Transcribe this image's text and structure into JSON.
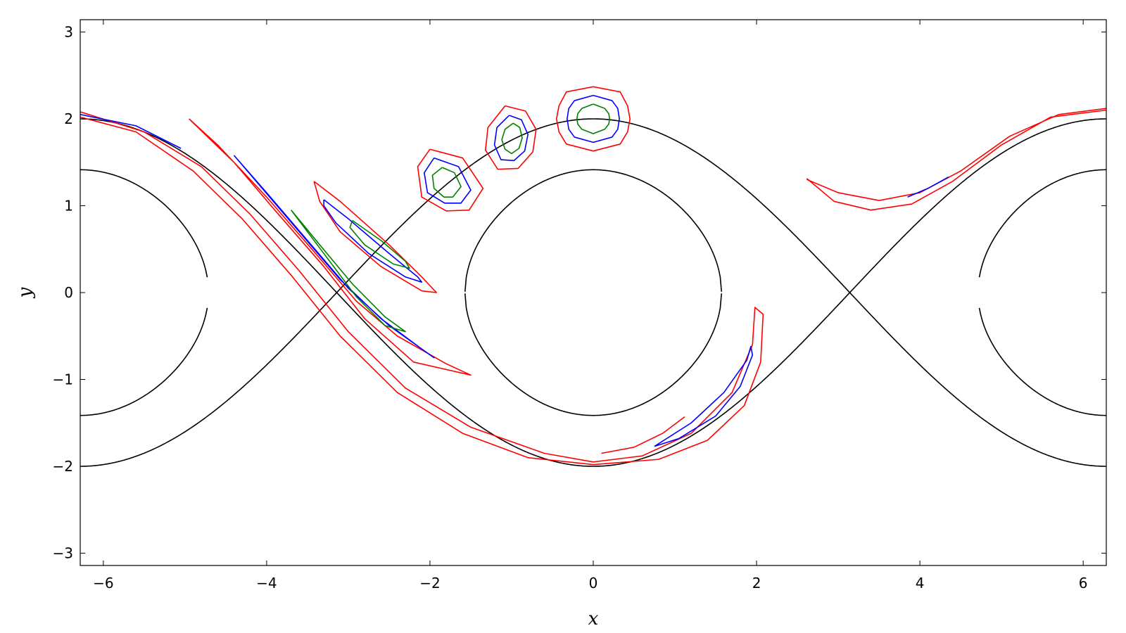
{
  "chart_data": {
    "type": "line",
    "title": "",
    "xlabel": "x",
    "ylabel": "y",
    "xlim": [
      -6.283,
      6.283
    ],
    "ylim": [
      -3.14159,
      3.14159
    ],
    "x_ticks": [
      -6,
      -4,
      -2,
      0,
      2,
      4,
      6
    ],
    "x_tick_labels": [
      "−6",
      "−4",
      "−2",
      "0",
      "2",
      "4",
      "6"
    ],
    "y_ticks": [
      -3,
      -2,
      -1,
      0,
      1,
      2,
      3
    ],
    "y_tick_labels": [
      "−3",
      "−2",
      "−1",
      "0",
      "1",
      "2",
      "3"
    ],
    "grid": false,
    "legend": "none",
    "colors": {
      "separatrix": "#000000",
      "outer": "#ff0000",
      "middle": "#0000ff",
      "inner": "#008000"
    },
    "separatrix_levels": [
      {
        "energy": -1,
        "note": "separatrix y = ±2cos(x/2)"
      },
      {
        "energy": 0,
        "note": "y = ±√(2(1+cos x))"
      },
      {
        "energy": 1,
        "note": "outer curves"
      }
    ],
    "series": [
      {
        "color": "outer",
        "points": [
          [
            0.0,
            2.37
          ],
          [
            0.33,
            2.31
          ],
          [
            0.42,
            2.15
          ],
          [
            0.45,
            2.0
          ],
          [
            0.42,
            1.85
          ],
          [
            0.33,
            1.71
          ],
          [
            0.0,
            1.63
          ],
          [
            -0.33,
            1.71
          ],
          [
            -0.42,
            1.85
          ],
          [
            -0.45,
            2.0
          ],
          [
            -0.42,
            2.15
          ],
          [
            -0.33,
            2.31
          ],
          [
            0.0,
            2.37
          ]
        ]
      },
      {
        "color": "middle",
        "points": [
          [
            0.0,
            2.27
          ],
          [
            0.23,
            2.21
          ],
          [
            0.3,
            2.12
          ],
          [
            0.32,
            2.0
          ],
          [
            0.3,
            1.88
          ],
          [
            0.23,
            1.79
          ],
          [
            0.0,
            1.73
          ],
          [
            -0.23,
            1.79
          ],
          [
            -0.3,
            1.88
          ],
          [
            -0.32,
            2.0
          ],
          [
            -0.3,
            2.12
          ],
          [
            -0.23,
            2.21
          ],
          [
            0.0,
            2.27
          ]
        ]
      },
      {
        "color": "inner",
        "points": [
          [
            0.0,
            2.17
          ],
          [
            0.14,
            2.12
          ],
          [
            0.19,
            2.06
          ],
          [
            0.2,
            2.0
          ],
          [
            0.19,
            1.94
          ],
          [
            0.14,
            1.88
          ],
          [
            0.0,
            1.83
          ],
          [
            -0.14,
            1.88
          ],
          [
            -0.19,
            1.94
          ],
          [
            -0.2,
            2.0
          ],
          [
            -0.19,
            2.06
          ],
          [
            -0.14,
            2.12
          ],
          [
            0.0,
            2.17
          ]
        ]
      },
      {
        "color": "outer",
        "points": [
          [
            -1.08,
            2.15
          ],
          [
            -0.83,
            2.09
          ],
          [
            -0.7,
            1.88
          ],
          [
            -0.74,
            1.62
          ],
          [
            -0.92,
            1.43
          ],
          [
            -1.17,
            1.42
          ],
          [
            -1.32,
            1.64
          ],
          [
            -1.29,
            1.9
          ],
          [
            -1.08,
            2.15
          ]
        ]
      },
      {
        "color": "middle",
        "points": [
          [
            -1.03,
            2.04
          ],
          [
            -0.88,
            1.99
          ],
          [
            -0.8,
            1.82
          ],
          [
            -0.84,
            1.63
          ],
          [
            -0.97,
            1.52
          ],
          [
            -1.13,
            1.53
          ],
          [
            -1.21,
            1.7
          ],
          [
            -1.18,
            1.9
          ],
          [
            -1.03,
            2.04
          ]
        ]
      },
      {
        "color": "inner",
        "points": [
          [
            -0.98,
            1.95
          ],
          [
            -0.9,
            1.9
          ],
          [
            -0.87,
            1.78
          ],
          [
            -0.91,
            1.66
          ],
          [
            -1.0,
            1.6
          ],
          [
            -1.08,
            1.65
          ],
          [
            -1.12,
            1.76
          ],
          [
            -1.08,
            1.88
          ],
          [
            -0.98,
            1.95
          ]
        ]
      },
      {
        "color": "outer",
        "points": [
          [
            -2.0,
            1.65
          ],
          [
            -1.6,
            1.55
          ],
          [
            -1.35,
            1.2
          ],
          [
            -1.52,
            0.95
          ],
          [
            -1.8,
            0.94
          ],
          [
            -2.1,
            1.1
          ],
          [
            -2.15,
            1.45
          ],
          [
            -2.0,
            1.65
          ]
        ]
      },
      {
        "color": "middle",
        "points": [
          [
            -1.95,
            1.55
          ],
          [
            -1.65,
            1.45
          ],
          [
            -1.5,
            1.18
          ],
          [
            -1.62,
            1.03
          ],
          [
            -1.82,
            1.03
          ],
          [
            -2.03,
            1.15
          ],
          [
            -2.07,
            1.38
          ],
          [
            -1.95,
            1.55
          ]
        ]
      },
      {
        "color": "inner",
        "points": [
          [
            -1.85,
            1.44
          ],
          [
            -1.7,
            1.38
          ],
          [
            -1.62,
            1.22
          ],
          [
            -1.72,
            1.1
          ],
          [
            -1.83,
            1.1
          ],
          [
            -1.95,
            1.2
          ],
          [
            -1.97,
            1.35
          ],
          [
            -1.85,
            1.44
          ]
        ]
      },
      {
        "color": "outer",
        "points": [
          [
            -3.42,
            1.28
          ],
          [
            -3.1,
            1.05
          ],
          [
            -2.5,
            0.55
          ],
          [
            -2.1,
            0.18
          ],
          [
            -1.92,
            0.0
          ],
          [
            -2.1,
            0.02
          ],
          [
            -2.6,
            0.3
          ],
          [
            -3.1,
            0.7
          ],
          [
            -3.35,
            1.05
          ],
          [
            -3.42,
            1.28
          ]
        ]
      },
      {
        "color": "middle",
        "points": [
          [
            -3.3,
            1.07
          ],
          [
            -3.0,
            0.85
          ],
          [
            -2.5,
            0.45
          ],
          [
            -2.15,
            0.18
          ],
          [
            -2.1,
            0.12
          ],
          [
            -2.3,
            0.18
          ],
          [
            -2.75,
            0.45
          ],
          [
            -3.15,
            0.8
          ],
          [
            -3.3,
            1.0
          ],
          [
            -3.3,
            1.07
          ]
        ]
      },
      {
        "color": "inner",
        "points": [
          [
            -2.95,
            0.83
          ],
          [
            -2.6,
            0.6
          ],
          [
            -2.3,
            0.36
          ],
          [
            -2.25,
            0.28
          ],
          [
            -2.45,
            0.33
          ],
          [
            -2.8,
            0.55
          ],
          [
            -2.98,
            0.75
          ],
          [
            -2.95,
            0.83
          ]
        ]
      },
      {
        "color": "outer",
        "points": [
          [
            -4.95,
            2.0
          ],
          [
            -4.4,
            1.5
          ],
          [
            -3.9,
            0.95
          ],
          [
            -3.3,
            0.3
          ],
          [
            -2.8,
            -0.3
          ],
          [
            -2.2,
            -0.8
          ],
          [
            -1.5,
            -0.95
          ],
          [
            -1.8,
            -0.82
          ],
          [
            -2.4,
            -0.5
          ],
          [
            -2.9,
            -0.1
          ],
          [
            -3.4,
            0.45
          ],
          [
            -4.0,
            1.1
          ],
          [
            -4.6,
            1.7
          ],
          [
            -4.95,
            2.0
          ]
        ]
      },
      {
        "color": "middle",
        "points": [
          [
            -4.4,
            1.58
          ],
          [
            -4.0,
            1.15
          ],
          [
            -3.5,
            0.6
          ],
          [
            -3.0,
            0.05
          ],
          [
            -2.5,
            -0.38
          ],
          [
            -1.95,
            -0.75
          ],
          [
            -2.1,
            -0.65
          ],
          [
            -2.6,
            -0.3
          ],
          [
            -3.1,
            0.15
          ],
          [
            -3.6,
            0.7
          ],
          [
            -4.1,
            1.25
          ],
          [
            -4.4,
            1.58
          ]
        ]
      },
      {
        "color": "inner",
        "points": [
          [
            -3.7,
            0.95
          ],
          [
            -3.3,
            0.45
          ],
          [
            -2.9,
            -0.05
          ],
          [
            -2.55,
            -0.38
          ],
          [
            -2.3,
            -0.45
          ],
          [
            -2.55,
            -0.28
          ],
          [
            -2.95,
            0.1
          ],
          [
            -3.35,
            0.55
          ],
          [
            -3.7,
            0.95
          ]
        ]
      },
      {
        "color": "outer",
        "points": [
          [
            -6.28,
            2.08
          ],
          [
            -5.5,
            1.85
          ],
          [
            -4.8,
            1.45
          ],
          [
            -4.2,
            0.9
          ],
          [
            -3.6,
            0.25
          ],
          [
            -3.0,
            -0.45
          ],
          [
            -2.3,
            -1.1
          ],
          [
            -1.5,
            -1.55
          ],
          [
            -0.6,
            -1.85
          ],
          [
            0.0,
            -1.95
          ],
          [
            0.6,
            -1.88
          ],
          [
            1.2,
            -1.62
          ],
          [
            1.7,
            -1.15
          ],
          [
            1.95,
            -0.6
          ],
          [
            1.98,
            -0.17
          ],
          [
            2.08,
            -0.25
          ],
          [
            2.05,
            -0.8
          ],
          [
            1.85,
            -1.3
          ],
          [
            1.4,
            -1.7
          ],
          [
            0.8,
            -1.92
          ],
          [
            0.0,
            -1.98
          ],
          [
            -0.8,
            -1.9
          ],
          [
            -1.6,
            -1.62
          ],
          [
            -2.4,
            -1.15
          ],
          [
            -3.1,
            -0.5
          ],
          [
            -3.7,
            0.2
          ],
          [
            -4.3,
            0.85
          ],
          [
            -4.9,
            1.4
          ],
          [
            -5.6,
            1.85
          ],
          [
            -6.28,
            2.02
          ]
        ]
      },
      {
        "color": "middle",
        "points": [
          [
            0.75,
            -1.77
          ],
          [
            1.2,
            -1.5
          ],
          [
            1.6,
            -1.15
          ],
          [
            1.88,
            -0.78
          ],
          [
            1.93,
            -0.62
          ],
          [
            1.95,
            -0.72
          ],
          [
            1.8,
            -1.08
          ],
          [
            1.5,
            -1.42
          ],
          [
            1.05,
            -1.68
          ],
          [
            0.75,
            -1.77
          ]
        ]
      },
      {
        "color": "outer",
        "points": [
          [
            0.1,
            -1.85
          ],
          [
            0.5,
            -1.78
          ],
          [
            0.85,
            -1.62
          ],
          [
            1.12,
            -1.43
          ]
        ]
      },
      {
        "color": "outer",
        "points": [
          [
            6.28,
            2.1
          ],
          [
            5.6,
            2.02
          ],
          [
            5.0,
            1.7
          ],
          [
            4.4,
            1.28
          ],
          [
            3.9,
            1.02
          ],
          [
            3.4,
            0.95
          ],
          [
            2.95,
            1.05
          ],
          [
            2.62,
            1.31
          ],
          [
            2.62,
            1.3
          ],
          [
            3.0,
            1.15
          ],
          [
            3.5,
            1.06
          ],
          [
            4.0,
            1.15
          ],
          [
            4.5,
            1.4
          ],
          [
            5.1,
            1.8
          ],
          [
            5.7,
            2.05
          ],
          [
            6.28,
            2.12
          ]
        ]
      },
      {
        "color": "middle",
        "points": [
          [
            3.85,
            1.1
          ],
          [
            4.1,
            1.2
          ],
          [
            4.35,
            1.33
          ]
        ]
      },
      {
        "color": "middle",
        "points": [
          [
            -6.28,
            2.05
          ],
          [
            -5.6,
            1.92
          ],
          [
            -5.05,
            1.66
          ]
        ]
      }
    ]
  }
}
